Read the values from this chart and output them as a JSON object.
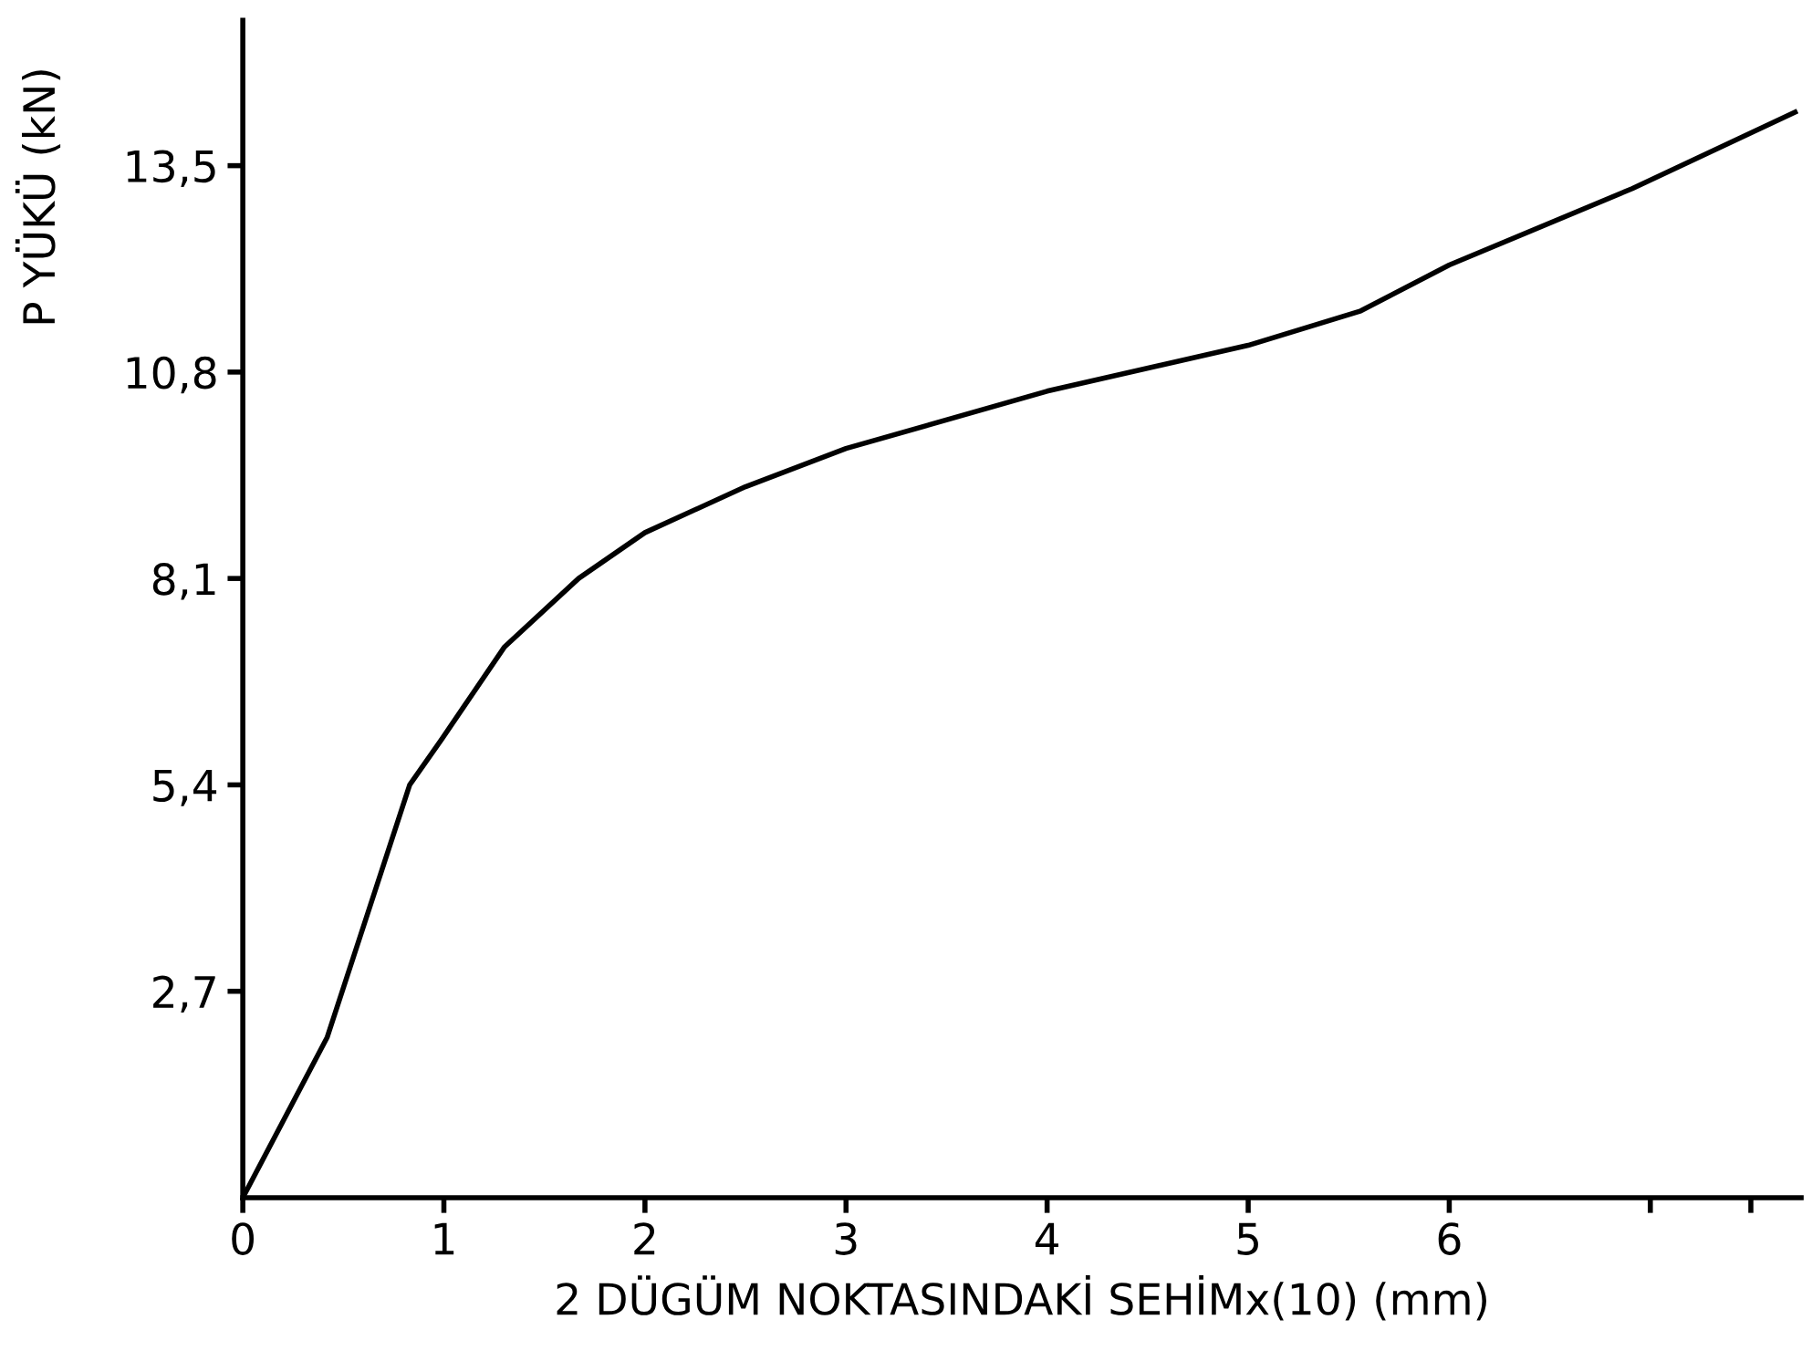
{
  "chart_data": {
    "type": "line",
    "xlabel": "2 DÜGÜM NOKTASINDAKİ SEHİMx(10) (mm)",
    "ylabel": "P YÜKÜ (kN)",
    "series": [
      {
        "color": "#000000",
        "x": [
          0,
          0.42,
          0.83,
          0.99,
          1.3,
          1.67,
          2.0,
          2.5,
          3.0,
          4.0,
          5.0,
          5.56,
          6.0,
          6.91,
          7.72
        ],
        "values": [
          0,
          2.1,
          5.4,
          6.0,
          7.2,
          8.1,
          8.7,
          9.3,
          9.8,
          10.55,
          11.15,
          11.6,
          12.2,
          13.2,
          14.2
        ]
      }
    ],
    "xlim": [
      0,
      7.75
    ],
    "ylim": [
      0,
      15.4
    ],
    "xticks": [
      0,
      1,
      2,
      3,
      4,
      5,
      6,
      {
        "value": 7,
        "label": null
      },
      {
        "value": 7.5,
        "label": null
      }
    ],
    "yticks": [
      {
        "value": 2.7,
        "label": "2,7"
      },
      {
        "value": 5.4,
        "label": "5,4"
      },
      {
        "value": 8.1,
        "label": "8,1"
      },
      {
        "value": 10.8,
        "label": "10,8"
      },
      {
        "value": 13.5,
        "label": "13,5"
      }
    ],
    "grid": false,
    "marker": "none",
    "line_style": "solid"
  }
}
